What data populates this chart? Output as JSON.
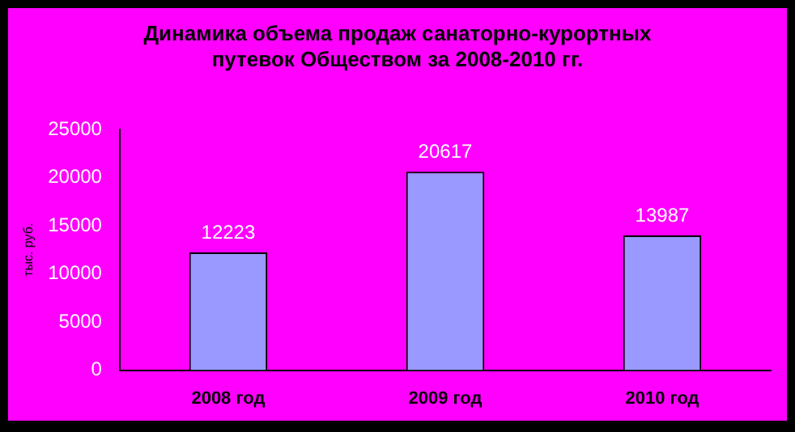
{
  "chart_data": {
    "type": "bar",
    "title": "Динамика объема продаж санаторно-курортных путевок Обществом за 2008-2010 гг.",
    "ylabel": "тыс. руб.",
    "categories": [
      "2008 год",
      "2009 год",
      "2010 год"
    ],
    "values": [
      12223,
      20617,
      13987
    ],
    "color": "#9999ff",
    "ylim": [
      0,
      25000
    ],
    "yticks": [
      0,
      5000,
      10000,
      15000,
      20000,
      25000
    ],
    "grid": false,
    "legend": false,
    "data_labels": true
  }
}
